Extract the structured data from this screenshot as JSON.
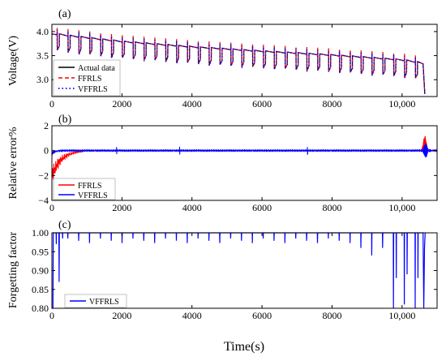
{
  "figure": {
    "xlabel": "Time(s)",
    "colors": {
      "actual": "#000000",
      "ffrls": "#ff0000",
      "vffrls": "#0000ff",
      "axis": "#000000"
    }
  },
  "chart_data": [
    {
      "type": "line",
      "panel_label": "(a)",
      "ylabel": "Voltage(V)",
      "xlim": [
        0,
        11000
      ],
      "ylim": [
        2.65,
        4.15
      ],
      "x_ticks": [
        0,
        2000,
        4000,
        6000,
        8000,
        10000
      ],
      "x_tick_labels": [
        "0",
        "2000",
        "4000",
        "6000",
        "8000",
        "10,000"
      ],
      "y_ticks": [
        3.0,
        3.5,
        4.0
      ],
      "y_tick_labels": [
        "3.0",
        "3.5",
        "4.0"
      ],
      "legend_position": "bottom-left",
      "pulses": {
        "count": 34,
        "start_s": 150,
        "period_s": 310,
        "duration_s": 60,
        "drop_v": 0.32
      },
      "baseline_voltage": {
        "t": [
          0,
          500,
          2000,
          4000,
          6000,
          8000,
          10000,
          10600,
          10650
        ],
        "v": [
          3.95,
          3.9,
          3.78,
          3.67,
          3.58,
          3.5,
          3.4,
          3.33,
          2.7
        ]
      },
      "series": [
        {
          "name": "Actual data",
          "style": "solid"
        },
        {
          "name": "FFRLS",
          "style": "dashed"
        },
        {
          "name": "VFFRLS",
          "style": "dotted"
        }
      ]
    },
    {
      "type": "line",
      "panel_label": "(b)",
      "ylabel": "Relative error%",
      "xlim": [
        0,
        11000
      ],
      "ylim": [
        -4,
        2
      ],
      "x_ticks": [
        0,
        2000,
        4000,
        6000,
        8000,
        10000
      ],
      "x_tick_labels": [
        "0",
        "2000",
        "4000",
        "6000",
        "8000",
        "10,000"
      ],
      "y_ticks": [
        -4,
        -2,
        0,
        2
      ],
      "y_tick_labels": [
        "−4",
        "−2",
        "0",
        "2"
      ],
      "legend_position": "bottom-left",
      "series": [
        {
          "name": "FFRLS",
          "features": {
            "initial_error_min": -2.5,
            "settle_time_s": 900,
            "end_spike_max": 1.2
          }
        },
        {
          "name": "VFFRLS",
          "features": {
            "initial_error_min": -0.4,
            "spikes_at_s": [
              1850,
              3650,
              7300
            ],
            "end_spike_max": 0.6
          }
        }
      ]
    },
    {
      "type": "line",
      "panel_label": "(c)",
      "ylabel": "Forgetting factor",
      "xlim": [
        0,
        11000
      ],
      "ylim": [
        0.8,
        1.0
      ],
      "x_ticks": [
        0,
        2000,
        4000,
        6000,
        8000,
        10000
      ],
      "x_tick_labels": [
        "0",
        "2000",
        "4000",
        "6000",
        "8000",
        "10,000"
      ],
      "y_ticks": [
        0.8,
        0.85,
        0.9,
        0.95,
        1.0
      ],
      "y_tick_labels": [
        "0.80",
        "0.85",
        "0.90",
        "0.95",
        "1.00"
      ],
      "legend_position": "bottom-left",
      "series": [
        {
          "name": "VFFRLS",
          "baseline": 1.0,
          "min_values": {
            "start": 0.8,
            "early_dips": [
              0.87,
              0.97
            ],
            "mid_dip": 0.985,
            "late_dips": [
              0.94,
              0.81,
              0.8
            ]
          }
        }
      ]
    }
  ]
}
